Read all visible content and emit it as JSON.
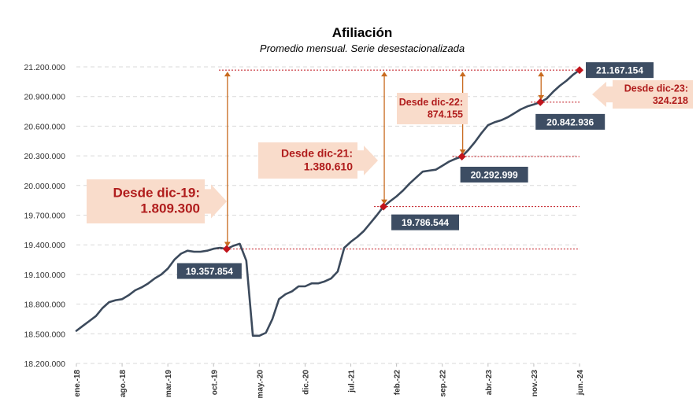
{
  "chart_data": {
    "type": "line",
    "title": "Afiliación",
    "subtitle": "Promedio mensual. Serie desestacionalizada",
    "xlabel": "",
    "ylabel": "",
    "ylim": [
      18200000,
      21200000
    ],
    "yticks": [
      18200000,
      18500000,
      18800000,
      19100000,
      19400000,
      19700000,
      20000000,
      20300000,
      20600000,
      20900000,
      21200000
    ],
    "ytick_labels": [
      "18.200.000",
      "18.500.000",
      "18.800.000",
      "19.100.000",
      "19.400.000",
      "19.700.000",
      "20.000.000",
      "20.300.000",
      "20.600.000",
      "20.900.000",
      "21.200.000"
    ],
    "grid": true,
    "xtick_labels": [
      "ene.-18",
      "ago.-18",
      "mar.-19",
      "oct.-19",
      "may.-20",
      "dic.-20",
      "jul.-21",
      "feb.-22",
      "sep.-22",
      "abr.-23",
      "nov.-23",
      "jun.-24"
    ],
    "xtick_dates": [
      "2018-01",
      "2018-08",
      "2019-03",
      "2019-10",
      "2020-05",
      "2020-12",
      "2021-07",
      "2022-02",
      "2022-09",
      "2023-04",
      "2023-11",
      "2024-06"
    ],
    "series": [
      {
        "name": "",
        "color": "#3c4a5c",
        "points": [
          [
            "2018-01",
            18530000
          ],
          [
            "2018-02",
            18580000
          ],
          [
            "2018-03",
            18630000
          ],
          [
            "2018-04",
            18680000
          ],
          [
            "2018-05",
            18760000
          ],
          [
            "2018-06",
            18820000
          ],
          [
            "2018-07",
            18840000
          ],
          [
            "2018-08",
            18850000
          ],
          [
            "2018-09",
            18890000
          ],
          [
            "2018-10",
            18940000
          ],
          [
            "2018-11",
            18970000
          ],
          [
            "2018-12",
            19010000
          ],
          [
            "2019-01",
            19060000
          ],
          [
            "2019-02",
            19100000
          ],
          [
            "2019-03",
            19160000
          ],
          [
            "2019-04",
            19250000
          ],
          [
            "2019-05",
            19310000
          ],
          [
            "2019-06",
            19340000
          ],
          [
            "2019-07",
            19330000
          ],
          [
            "2019-08",
            19330000
          ],
          [
            "2019-09",
            19340000
          ],
          [
            "2019-10",
            19360000
          ],
          [
            "2019-11",
            19370000
          ],
          [
            "2019-12",
            19357854
          ],
          [
            "2020-01",
            19390000
          ],
          [
            "2020-02",
            19410000
          ],
          [
            "2020-03",
            19240000
          ],
          [
            "2020-04",
            18480000
          ],
          [
            "2020-05",
            18480000
          ],
          [
            "2020-06",
            18510000
          ],
          [
            "2020-07",
            18650000
          ],
          [
            "2020-08",
            18850000
          ],
          [
            "2020-09",
            18900000
          ],
          [
            "2020-10",
            18930000
          ],
          [
            "2020-11",
            18980000
          ],
          [
            "2020-12",
            18980000
          ],
          [
            "2021-01",
            19010000
          ],
          [
            "2021-02",
            19010000
          ],
          [
            "2021-03",
            19030000
          ],
          [
            "2021-04",
            19060000
          ],
          [
            "2021-05",
            19130000
          ],
          [
            "2021-06",
            19370000
          ],
          [
            "2021-07",
            19430000
          ],
          [
            "2021-08",
            19480000
          ],
          [
            "2021-09",
            19540000
          ],
          [
            "2021-10",
            19620000
          ],
          [
            "2021-11",
            19700000
          ],
          [
            "2021-12",
            19786544
          ],
          [
            "2022-01",
            19840000
          ],
          [
            "2022-02",
            19890000
          ],
          [
            "2022-03",
            19950000
          ],
          [
            "2022-04",
            20020000
          ],
          [
            "2022-05",
            20080000
          ],
          [
            "2022-06",
            20140000
          ],
          [
            "2022-07",
            20150000
          ],
          [
            "2022-08",
            20160000
          ],
          [
            "2022-09",
            20200000
          ],
          [
            "2022-10",
            20240000
          ],
          [
            "2022-11",
            20270000
          ],
          [
            "2022-12",
            20292999
          ],
          [
            "2023-01",
            20360000
          ],
          [
            "2023-02",
            20440000
          ],
          [
            "2023-03",
            20530000
          ],
          [
            "2023-04",
            20610000
          ],
          [
            "2023-05",
            20640000
          ],
          [
            "2023-06",
            20660000
          ],
          [
            "2023-07",
            20690000
          ],
          [
            "2023-08",
            20730000
          ],
          [
            "2023-09",
            20770000
          ],
          [
            "2023-10",
            20800000
          ],
          [
            "2023-11",
            20820000
          ],
          [
            "2023-12",
            20842936
          ],
          [
            "2024-01",
            20880000
          ],
          [
            "2024-02",
            20950000
          ],
          [
            "2024-03",
            21010000
          ],
          [
            "2024-04",
            21060000
          ],
          [
            "2024-05",
            21120000
          ],
          [
            "2024-06",
            21167154
          ]
        ]
      }
    ],
    "markers": [
      {
        "date": "2019-12",
        "value": 19357854,
        "label": "19.357.854"
      },
      {
        "date": "2021-12",
        "value": 19786544,
        "label": "19.786.544"
      },
      {
        "date": "2022-12",
        "value": 20292999,
        "label": "20.292.999"
      },
      {
        "date": "2023-12",
        "value": 20842936,
        "label": "20.842.936"
      },
      {
        "date": "2024-06",
        "value": 21167154,
        "label": "21.167.154"
      }
    ],
    "annotations": [
      {
        "from": "2019-12",
        "line1": "Desde dic-19:",
        "line2": "1.809.300"
      },
      {
        "from": "2021-12",
        "line1": "Desde dic-21:",
        "line2": "1.380.610"
      },
      {
        "from": "2022-12",
        "line1": "Desde dic-22:",
        "line2": "874.155"
      },
      {
        "from": "2023-12",
        "line1": "Desde dic-23:",
        "line2": "324.218"
      }
    ],
    "colors": {
      "line": "#3c4a5c",
      "marker": "#c0141c",
      "reference_line": "#c0141c",
      "arrow": "#c86a1e",
      "callout_fill": "#f9dccb",
      "callout_text": "#b01c1c",
      "value_label_bg": "#3d4d63"
    }
  }
}
